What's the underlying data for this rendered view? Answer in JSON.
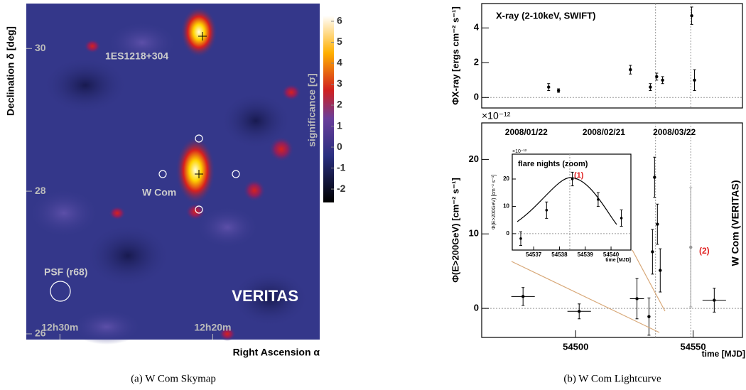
{
  "captions": [
    "(a) W Com Skymap",
    "(b) W Com Lightcurve"
  ],
  "chart_data": [
    {
      "type": "skymap",
      "title": "VERITAS",
      "xlabel": "Right Ascension α",
      "ylabel": "Declination δ [deg]",
      "colorbar_label": "significance [σ]",
      "xlim": [
        752.2,
        733.0
      ],
      "xticks": [
        {
          "value": 750,
          "label": "12h30m"
        },
        {
          "value": 740,
          "label": "12h20m"
        }
      ],
      "ylim": [
        25.92,
        30.63
      ],
      "yticks": [
        26,
        28,
        30
      ],
      "clim": [
        -2.64,
        6.27
      ],
      "cticks": [
        -2,
        -1,
        0,
        1,
        2,
        3,
        4,
        5,
        6
      ],
      "annotations": [
        "1ES1218+304",
        "W Com",
        "PSF (r68)"
      ]
    },
    {
      "type": "errorbar",
      "title": "X-ray (2-10keV, SWIFT)",
      "ylabel": "ΦX-ray [ergs cm⁻² s⁻¹]",
      "exponent": "×10",
      "xlim": [
        54460,
        54571
      ],
      "ylim": [
        -0.6,
        5.4
      ],
      "yticks": [
        0,
        2,
        4
      ],
      "vlines": [
        54534,
        54549
      ],
      "series": [
        {
          "color": "#000000",
          "x": [
            54488.5,
            54492.7,
            54523.3,
            54531.8,
            54534.5,
            54537,
            54549.4,
            54550.6
          ],
          "values": [
            0.6,
            0.4,
            1.6,
            0.6,
            1.2,
            1.0,
            4.7,
            1.0
          ],
          "errors": [
            0.2,
            0.1,
            0.25,
            0.2,
            0.2,
            0.2,
            0.5,
            0.6
          ]
        }
      ]
    },
    {
      "type": "errorbar",
      "title": "W Com (VERITAS)",
      "ylabel": "Φ(E>200GeV) [cm⁻² s⁻¹]",
      "xlabel": "time [MJD]",
      "exponent": "×10⁻¹²",
      "xlim": [
        54460,
        54571
      ],
      "xticks": [
        54500,
        54550
      ],
      "x2ticks": [
        {
          "value": 54479,
          "label": "2008/01/22"
        },
        {
          "value": 54512,
          "label": "2008/02/21"
        },
        {
          "value": 54542,
          "label": "2008/03/22"
        }
      ],
      "ylim": [
        -3.9,
        24.9
      ],
      "yticks": [
        0,
        10,
        20
      ],
      "vlines": [
        54534,
        54549
      ],
      "annotations": [
        "(2)"
      ],
      "series": [
        {
          "color": "#000000",
          "x": [
            54477.6,
            54501.5,
            54526.1,
            54531.2,
            54532.7,
            54533.6,
            54534.8,
            54536.0,
            54559.0
          ],
          "values": [
            1.6,
            -0.4,
            1.3,
            -1.1,
            7.6,
            17.6,
            11.3,
            5.1,
            1.1
          ],
          "errors": [
            1.2,
            1.0,
            2.7,
            2.5,
            3.0,
            2.7,
            2.7,
            2.9,
            1.6
          ],
          "xerrors": [
            5,
            5,
            3,
            0,
            0,
            0,
            0,
            0,
            5
          ]
        },
        {
          "color": "#999999",
          "x": [
            54549.0
          ],
          "values": [
            8.2
          ],
          "errors": [
            8.0
          ],
          "xerrors": [
            0
          ]
        }
      ]
    },
    {
      "type": "errorbar",
      "title": "flare nights (zoom)",
      "ylabel": "Φ(E>200GeV) [cm⁻² s⁻¹]",
      "xlabel": "time [MJD]",
      "exponent": "×10⁻¹²",
      "xlim": [
        54536.17,
        54540.77
      ],
      "xticks": [
        54537,
        54538,
        54539,
        54540
      ],
      "ylim": [
        -6,
        29.1
      ],
      "yticks": [
        0,
        10,
        20
      ],
      "vlines": [
        54538.4
      ],
      "annotations": [
        "(1)"
      ],
      "series": [
        {
          "color": "#000000",
          "x": [
            54536.5,
            54537.5,
            54538.5,
            54539.5,
            54540.4
          ],
          "values": [
            -1.8,
            8.6,
            20,
            12.5,
            5.7
          ],
          "errors": [
            2.5,
            3.0,
            2.5,
            2.5,
            3.0
          ]
        }
      ]
    }
  ]
}
